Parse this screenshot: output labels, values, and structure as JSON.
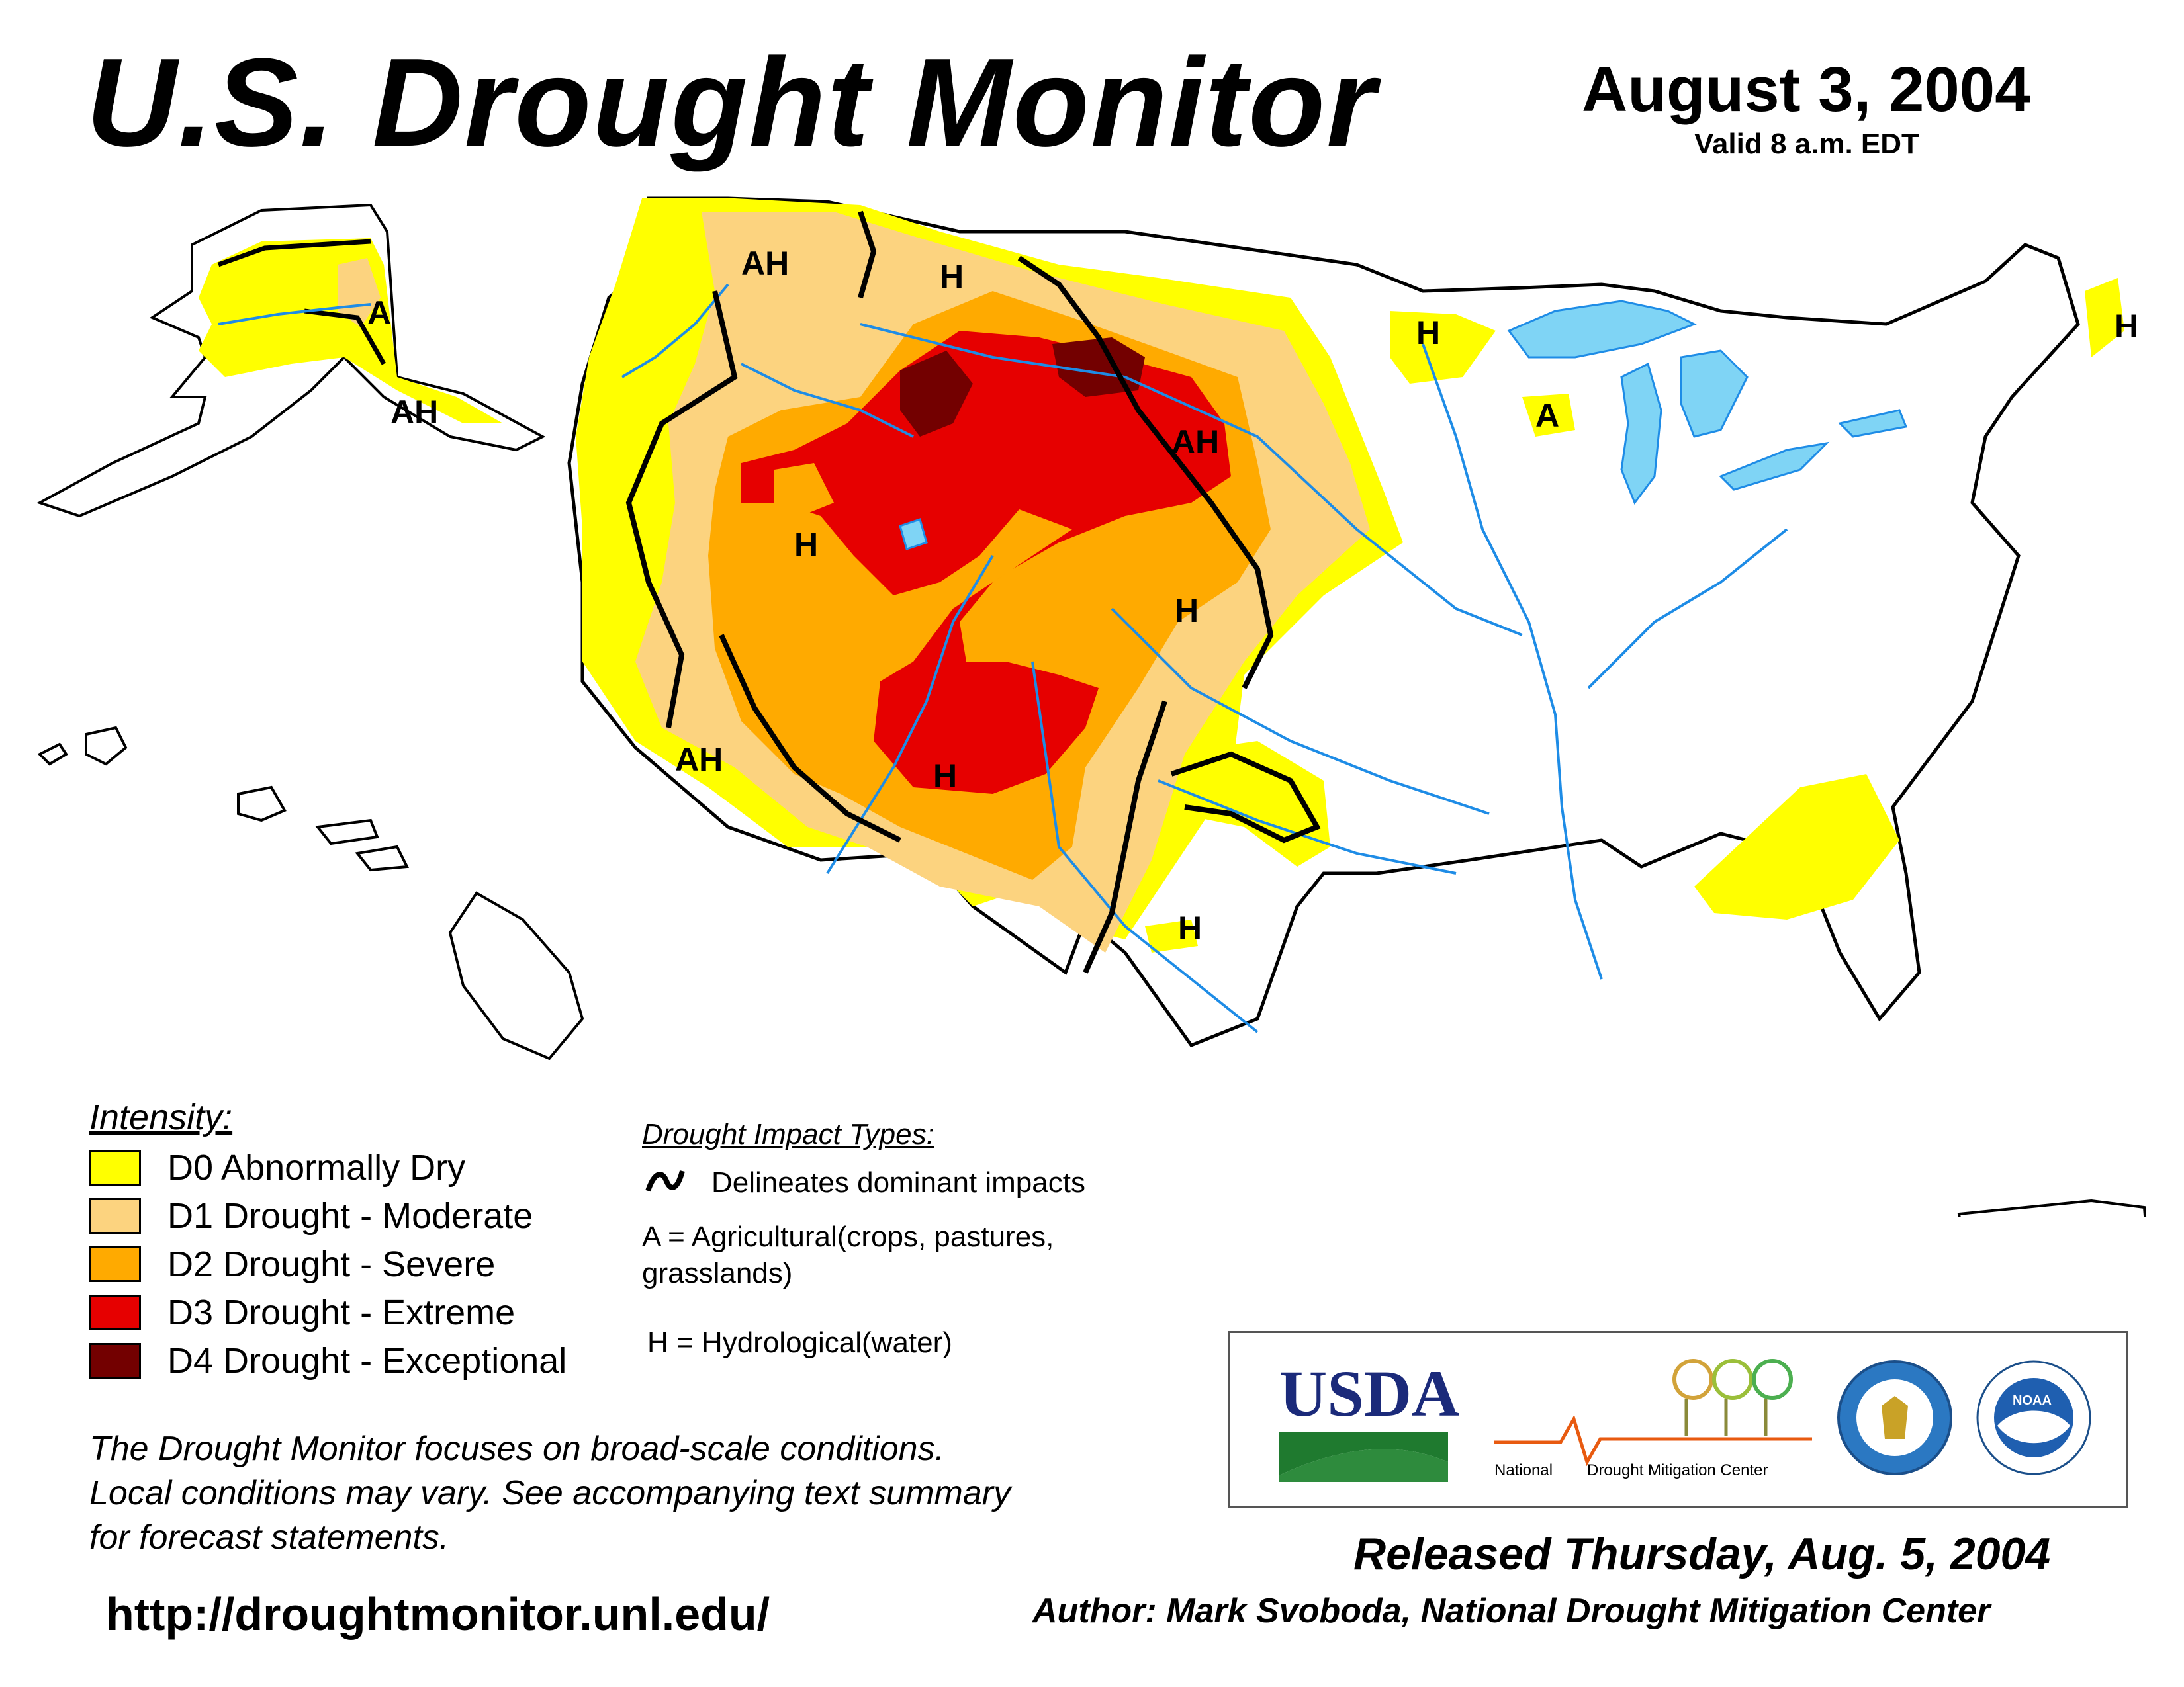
{
  "header": {
    "title": "U.S. Drought Monitor",
    "date": "August 3, 2004",
    "valid": "Valid 8 a.m. EDT"
  },
  "map": {
    "colors": {
      "d0": "#ffff00",
      "d1": "#fcd37f",
      "d2": "#ffaa00",
      "d3": "#e60000",
      "d4": "#730000",
      "water": "#7fd4f5",
      "river": "#1e8ce6",
      "border": "#000000",
      "county": "#9a9a9a"
    },
    "labels": {
      "ak_a": "A",
      "ak_ah": "AH",
      "wa_ah": "AH",
      "mt_h": "H",
      "nv_h": "H",
      "wy_ah": "AH",
      "ne_h": "H",
      "ca_ah": "AH",
      "nm_h": "H",
      "tx_h": "H",
      "mn_h": "H",
      "wi_a": "A",
      "me_h": "H"
    }
  },
  "legend": {
    "title": "Intensity:",
    "items": [
      {
        "label": "D0 Abnormally Dry",
        "color": "#ffff00"
      },
      {
        "label": "D1 Drought - Moderate",
        "color": "#fcd37f"
      },
      {
        "label": "D2 Drought - Severe",
        "color": "#ffaa00"
      },
      {
        "label": "D3 Drought - Extreme",
        "color": "#e60000"
      },
      {
        "label": "D4 Drought - Exceptional",
        "color": "#730000"
      }
    ]
  },
  "impacts": {
    "title": "Drought Impact Types:",
    "delineates": "Delineates dominant impacts",
    "ag_line1": "A = Agricultural(crops, pastures,",
    "ag_line2": "grasslands)",
    "hydro": "H = Hydrological(water)"
  },
  "note": {
    "line1": "The Drought Monitor focuses on broad-scale conditions.",
    "line2": "Local conditions may vary. See accompanying text summary",
    "line3": "for forecast statements."
  },
  "url": "http://droughtmonitor.unl.edu/",
  "logos": {
    "usda": "USDA",
    "ndmc_national": "National",
    "ndmc_center": "Drought Mitigation Center",
    "noaa": "NOAA"
  },
  "footer": {
    "released": "Released Thursday, Aug. 5, 2004",
    "author": "Author: Mark Svoboda, National Drought Mitigation Center"
  }
}
